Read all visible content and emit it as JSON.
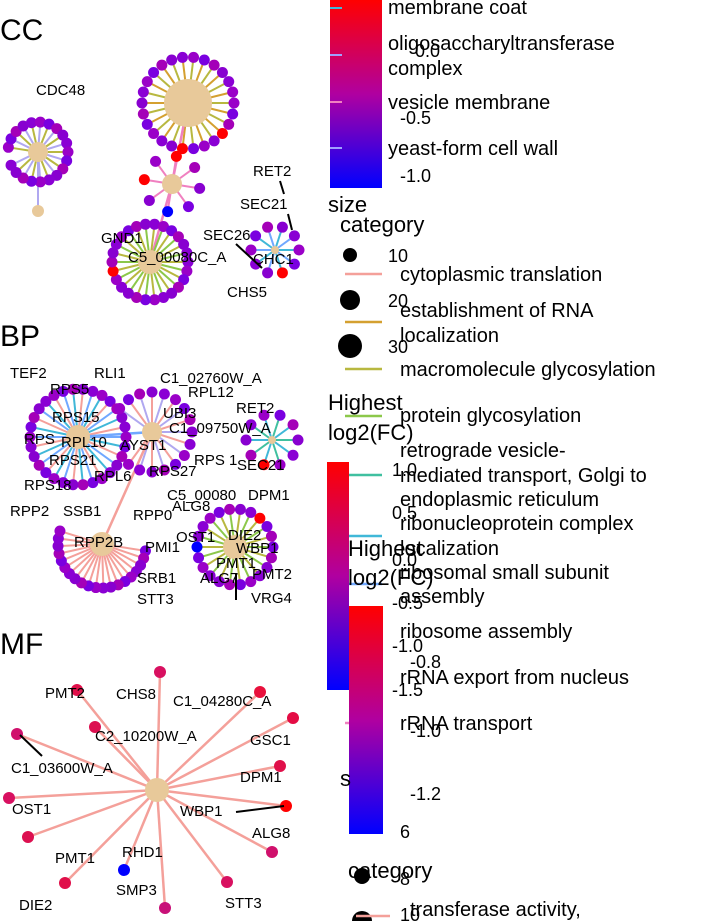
{
  "panels": {
    "cc": "CC",
    "bp": "BP",
    "mf": "MF"
  },
  "cc_labels": {
    "cdc48": "CDC48",
    "ret2": "RET2",
    "sec21": "SEC21",
    "sec26": "SEC26",
    "c5": "C5_00080C_A",
    "chc1": "CHC1",
    "gnd1": "GND1",
    "chs5": "CHS5"
  },
  "bp_labels": {
    "tef2": "TEF2",
    "rli1": "RLI1",
    "c1a": "C1_02760W_A",
    "rpl12": "RPL12",
    "rps5": "RPS5",
    "ubi3": "UBI3",
    "ret2": "RET2",
    "rps15": "RPS15",
    "c1b": "C1_09750W_A",
    "rps": "RPS",
    "rpl10": "RPL10",
    "ayst1": "AYST1",
    "rps21": "RPS21",
    "rps1": "RPS 1",
    "sec21": "SEC21",
    "rpl6": "RPL6",
    "rps27": "RPS27",
    "rps18": "RPS18",
    "c5": "C5_00080",
    "dpm1": "DPM1",
    "alg8": "ALG8",
    "rpp2": "RPP2",
    "ssb1": "SSB1",
    "rppo": "RPP0",
    "ost1": "OST1",
    "die2": "DIE2",
    "wbp1": "WBP1",
    "rpp2b": "RPP2B",
    "pmi1": "PMI1",
    "pmt1": "PMT1",
    "alg7": "ALG7",
    "pmt2": "PMT2",
    "srb1": "SRB1",
    "stt3": "STT3",
    "vrg4": "VRG4"
  },
  "mf_labels": {
    "pmt2": "PMT2",
    "chs8": "CHS8",
    "c1_04280": "C1_04280C_A",
    "c2": "C2_10200W_A",
    "gsc1": "GSC1",
    "c1_03600": "C1_03600W_A",
    "dpm1": "DPM1",
    "ost1": "OST1",
    "wbp1": "WBP1",
    "alg8": "ALG8",
    "pmt1": "PMT1",
    "rhd1": "RHD1",
    "smp3": "SMP3",
    "die2": "DIE2",
    "stt3": "STT3"
  },
  "legend_cc": {
    "categories": [
      "membrane coat",
      "oligosaccharyltransferase",
      "complex",
      "vesicle membrane",
      "yeast-form cell wall"
    ],
    "colorbar_ticks": [
      "0.0",
      "-0.5",
      "-1.0"
    ],
    "size_title": "size"
  },
  "legend_bp": {
    "category_title": "category",
    "size_values": [
      "10",
      "20",
      "30"
    ],
    "categories": [
      "cytoplasmic translation",
      "establishment of RNA",
      "localization",
      "macromolecule glycosylation",
      "protein glycosylation",
      "retrograde vesicle-",
      "mediated transport, Golgi to",
      "endoplasmic reticulum",
      "ribonucleoprotein complex",
      "localization",
      "ribosomal small subunit",
      "assembly",
      "ribosome assembly",
      "rRNA export from nucleus",
      "rRNA transport"
    ],
    "fc_title_1": "Highest",
    "fc_title_2": "log2(FC)",
    "colorbar_ticks": [
      "1.0",
      "0.5",
      "0.0",
      "-0.5",
      "-1.0",
      "-1.5"
    ]
  },
  "legend_mf": {
    "fc_title_1": "Highest",
    "fc_title_2": "log2(FC)",
    "colorbar_ticks": [
      "-0.8",
      "-1.0",
      "-1.2"
    ],
    "size_title": "s",
    "size_values": [
      "6",
      "8",
      "10"
    ],
    "category_title": "category",
    "category_first": "transferase activity,"
  },
  "colors": {
    "gene_high": "#ff0000",
    "gene_mid": "#a000c8",
    "gene_low": "#0000ff",
    "category_node": "#e8c99a",
    "edge_translation": "#f4a09a",
    "edge_rna": "#d4a030",
    "edge_glyco": "#b8b840",
    "edge_protglyco": "#8cc84a",
    "edge_retro": "#40c0a0",
    "edge_rnp": "#40b8d8",
    "edge_ssu": "#70a8ff",
    "edge_ribo": "#b0a8f0",
    "edge_export": "#e080e0",
    "edge_rrna": "#f080c0"
  }
}
